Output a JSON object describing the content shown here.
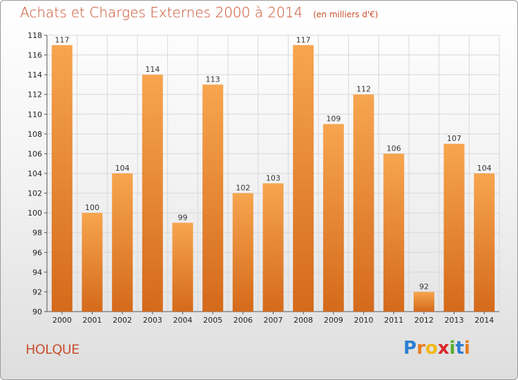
{
  "title": "Achats et Charges Externes 2000 à 2014",
  "subtitle": "(en milliers d'€)",
  "commune": "HOLQUE",
  "logo": {
    "letters": [
      "P",
      "r",
      "o",
      "x",
      "i",
      "t",
      "i"
    ]
  },
  "colors": {
    "bar_light": "#f7a54f",
    "bar_dark": "#d46a1b",
    "title": "#c8502f",
    "grid": "#d8d8d8"
  },
  "chart_data": {
    "type": "bar",
    "title": "Achats et Charges Externes 2000 à 2014",
    "subtitle": "(en milliers d'€)",
    "categories": [
      "2000",
      "2001",
      "2002",
      "2003",
      "2004",
      "2005",
      "2006",
      "2007",
      "2008",
      "2009",
      "2010",
      "2011",
      "2012",
      "2013",
      "2014"
    ],
    "values": [
      117,
      100,
      104,
      114,
      99,
      113,
      102,
      103,
      117,
      109,
      112,
      106,
      92,
      107,
      104
    ],
    "ylim": [
      90,
      118
    ],
    "yticks": [
      90,
      92,
      94,
      96,
      98,
      100,
      102,
      104,
      106,
      108,
      110,
      112,
      114,
      116,
      118
    ],
    "grid": true,
    "data_labels": true
  }
}
